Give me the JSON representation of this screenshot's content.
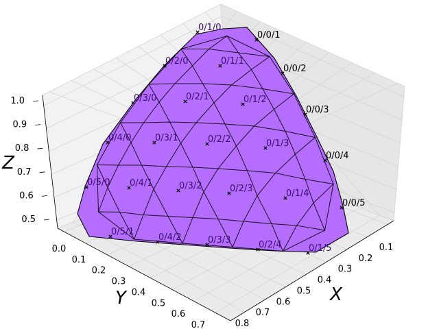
{
  "chart_data": {
    "type": "3d-surface-voronoi",
    "title": "",
    "xlabel": "X",
    "ylabel": "Y",
    "zlabel": "Z",
    "xlim": [
      0.0,
      0.87
    ],
    "ylim": [
      0.0,
      0.75
    ],
    "zlim": [
      0.5,
      1.0
    ],
    "x_ticks": [
      "0.1",
      "0.2",
      "0.3",
      "0.4",
      "0.5",
      "0.6",
      "0.7",
      "0.8"
    ],
    "y_ticks": [
      "0.0",
      "0.1",
      "0.2",
      "0.3",
      "0.4",
      "0.5",
      "0.6",
      "0.7"
    ],
    "z_ticks": [
      "0.5",
      "0.6",
      "0.7",
      "0.8",
      "0.9",
      "1.0"
    ],
    "surface_color": "#b266ff",
    "surface_edge_color": "#000000",
    "point_marker": "x",
    "points": [
      {
        "label": "0/0/1",
        "i": 0,
        "j": 1
      },
      {
        "label": "0/0/2",
        "i": 0,
        "j": 2
      },
      {
        "label": "0/0/3",
        "i": 0,
        "j": 3
      },
      {
        "label": "0/0/4",
        "i": 0,
        "j": 4
      },
      {
        "label": "0/0/5",
        "i": 0,
        "j": 5
      },
      {
        "label": "0/1/0",
        "i": 1,
        "j": 0
      },
      {
        "label": "0/1/1",
        "i": 1,
        "j": 1
      },
      {
        "label": "0/1/2",
        "i": 1,
        "j": 2
      },
      {
        "label": "0/1/3",
        "i": 1,
        "j": 3
      },
      {
        "label": "0/1/4",
        "i": 1,
        "j": 4
      },
      {
        "label": "0/1/5",
        "i": 1,
        "j": 5
      },
      {
        "label": "0/2/0",
        "i": 2,
        "j": 0
      },
      {
        "label": "0/2/1",
        "i": 2,
        "j": 1
      },
      {
        "label": "0/2/2",
        "i": 2,
        "j": 2
      },
      {
        "label": "0/2/3",
        "i": 2,
        "j": 3
      },
      {
        "label": "0/2/4",
        "i": 2,
        "j": 4
      },
      {
        "label": "0/3/0",
        "i": 3,
        "j": 0
      },
      {
        "label": "0/3/1",
        "i": 3,
        "j": 1
      },
      {
        "label": "0/3/2",
        "i": 3,
        "j": 2
      },
      {
        "label": "0/3/3",
        "i": 3,
        "j": 3
      },
      {
        "label": "0/4/0",
        "i": 4,
        "j": 0
      },
      {
        "label": "0/4/1",
        "i": 4,
        "j": 1
      },
      {
        "label": "0/4/2",
        "i": 4,
        "j": 2
      },
      {
        "label": "0/5/0",
        "i": 5,
        "j": 0
      },
      {
        "label": "0/5/1",
        "i": 5,
        "j": 1
      }
    ]
  }
}
